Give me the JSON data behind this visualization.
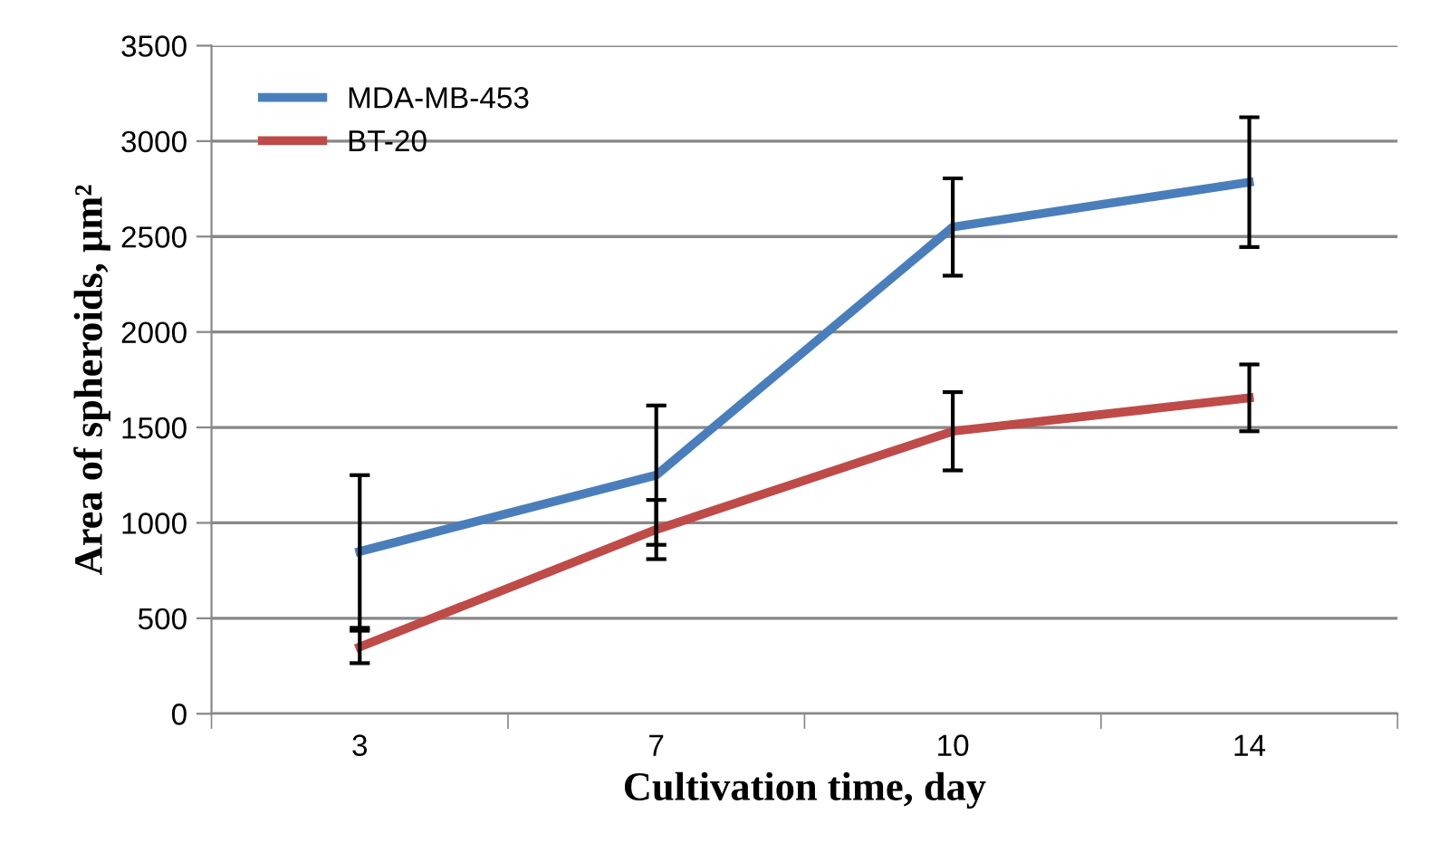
{
  "chart_data": {
    "type": "line",
    "xlabel": "Cultivation time, day",
    "ylabel": "Area of spheroids, μm²",
    "categories": [
      "3",
      "7",
      "10",
      "14"
    ],
    "series": [
      {
        "name": "MDA-MB-453",
        "color": "#4a7ebb",
        "values": [
          850,
          1250,
          2550,
          2785
        ],
        "errors": [
          400,
          365,
          255,
          340
        ]
      },
      {
        "name": "BT-20",
        "color": "#be4b48",
        "values": [
          350,
          965,
          1480,
          1655
        ],
        "errors": [
          85,
          155,
          205,
          175
        ]
      }
    ],
    "ylim": [
      0,
      3500
    ],
    "yticks": [
      0,
      500,
      1000,
      1500,
      2000,
      2500,
      3000,
      3500
    ],
    "grid": "y",
    "legend": "top left",
    "marker": "none",
    "line_style": "solid"
  }
}
